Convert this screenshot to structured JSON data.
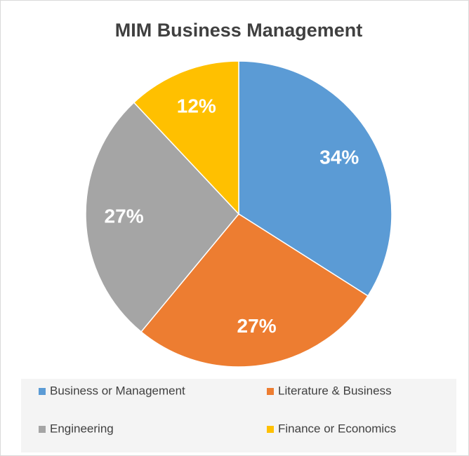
{
  "chart_data": {
    "type": "pie",
    "title": "MIM Business Management",
    "categories": [
      "Business or Management",
      "Literature & Business",
      "Engineering",
      "Finance or Economics"
    ],
    "values": [
      34,
      27,
      27,
      12
    ],
    "value_labels": [
      "34%",
      "27%",
      "27%",
      "12%"
    ],
    "colors": [
      "#5b9bd5",
      "#ed7d31",
      "#a5a5a5",
      "#ffc000"
    ],
    "legend": "bottom"
  }
}
